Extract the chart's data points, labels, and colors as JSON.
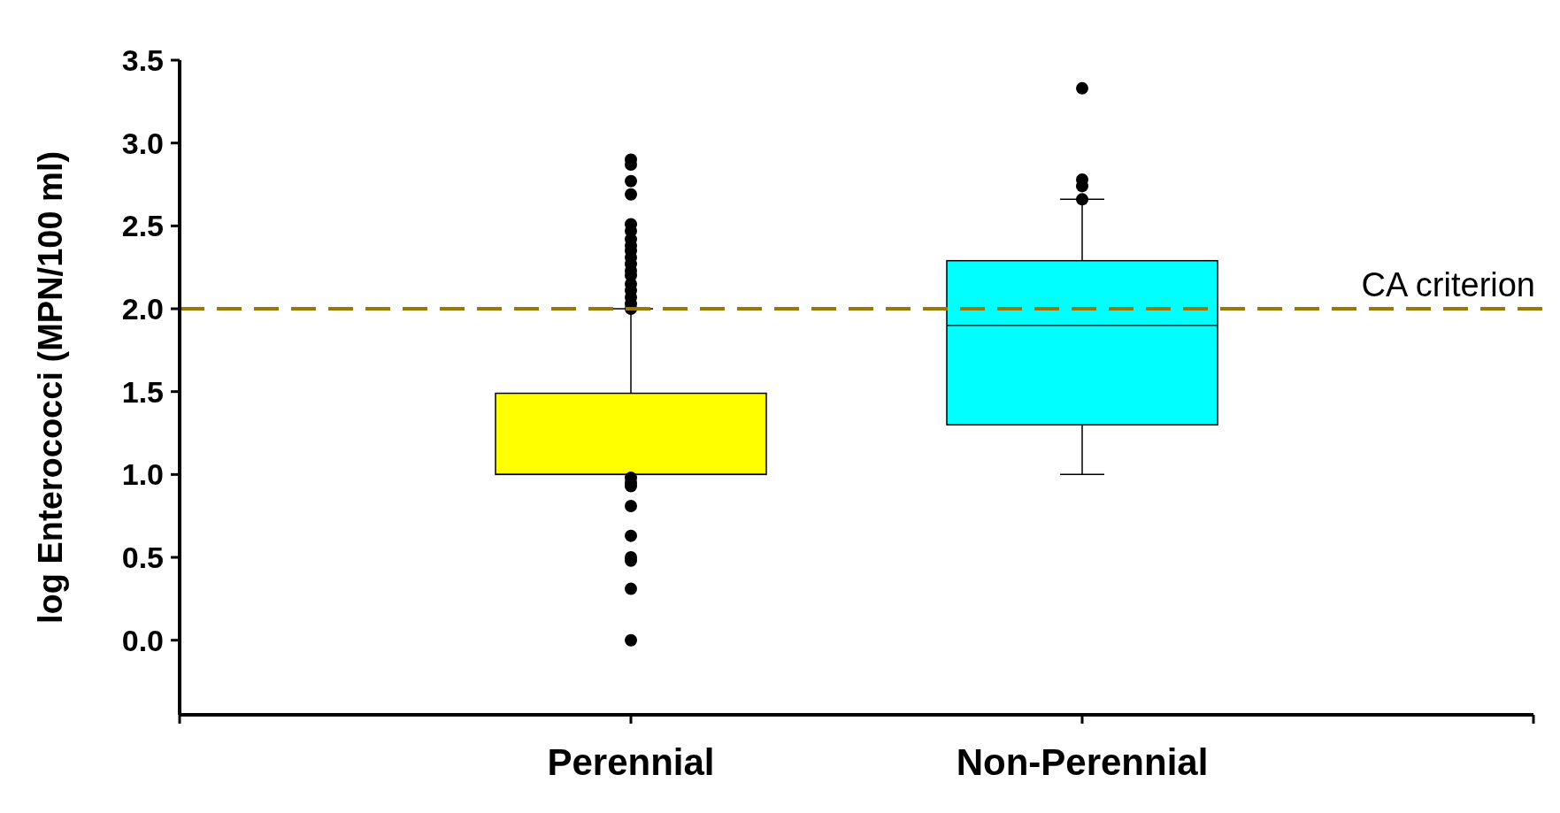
{
  "chart_data": {
    "type": "box",
    "ylabel": "log Enterococci (MPN/100 ml)",
    "categories": [
      "Perennial",
      "Non-Perennial"
    ],
    "series": [
      {
        "colors": [
          "#ffff00",
          "#00ffff"
        ],
        "boxes": [
          {
            "low": 1.0,
            "q1": 1.0,
            "median": 1.0,
            "q3": 1.49,
            "high": 2.0,
            "outliers": [
              2.9,
              2.87,
              2.77,
              2.69,
              2.51,
              2.47,
              2.42,
              2.38,
              2.35,
              2.31,
              2.27,
              2.23,
              2.2,
              2.15,
              2.11,
              2.07,
              2.03,
              2.0,
              0.98,
              0.95,
              0.93,
              0.81,
              0.63,
              0.5,
              0.48,
              0.31,
              0.0
            ]
          },
          {
            "low": 1.0,
            "q1": 1.3,
            "median": 1.9,
            "q3": 2.29,
            "high": 2.66,
            "outliers": [
              2.66,
              2.74,
              2.78,
              3.33
            ]
          }
        ]
      }
    ],
    "ylim": [
      -0.45,
      3.5
    ],
    "yticks": [
      {
        "value": 0,
        "label": "0.0"
      },
      0.5,
      {
        "value": 1,
        "label": "1.0"
      },
      1.5,
      {
        "value": 2,
        "label": "2.0"
      },
      2.5,
      {
        "value": 3,
        "label": "3.0"
      },
      3.5
    ],
    "ref_lines": [
      {
        "axis": "y",
        "value": 2,
        "label": "CA criterion",
        "color": "#9c7800",
        "line_style": "dashed"
      }
    ],
    "grid": false
  }
}
